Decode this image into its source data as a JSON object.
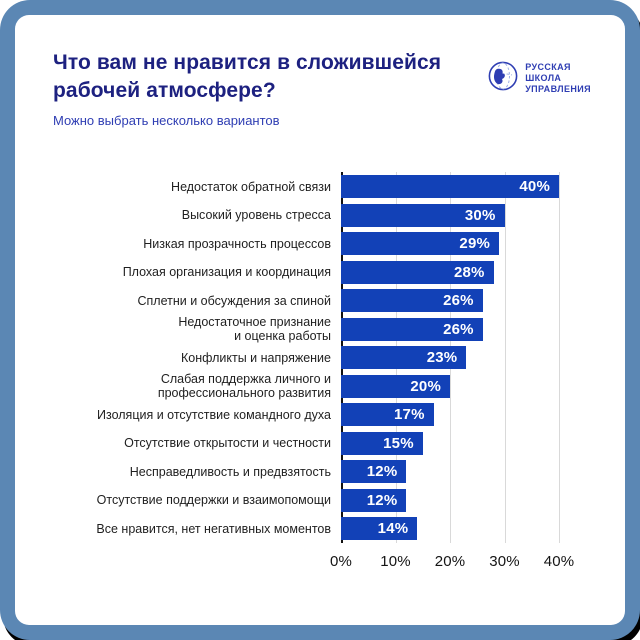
{
  "page": {
    "frame_color": "#5b87b4",
    "shadow_color": "#000000",
    "card_color": "#ffffff"
  },
  "header": {
    "title": "Что вам не нравится в сложившейся рабочей атмосфере?",
    "subtitle": "Можно выбрать несколько вариантов"
  },
  "logo": {
    "alt": "Русская школа управления",
    "lines": [
      "РУССКАЯ",
      "ШКОЛА",
      "УПРАВЛЕНИЯ"
    ],
    "color": "#2f3eb3"
  },
  "chart_data": {
    "type": "bar",
    "orientation": "horizontal",
    "title": "Что вам не нравится в сложившейся рабочей атмосфере?",
    "subtitle": "Можно выбрать несколько вариантов",
    "categories": [
      "Недостаток обратной связи",
      "Высокий уровень стресса",
      "Низкая прозрачность процессов",
      "Плохая организация и координация",
      "Сплетни и обсуждения за спиной",
      "Недостаточное признание\nи оценка работы",
      "Конфликты и напряжение",
      "Слабая поддержка личного и\nпрофессионального развития",
      "Изоляция и отсутствие командного духа",
      "Отсутствие открытости и честности",
      "Несправедливость и предвзятость",
      "Отсутствие поддержки и взаимопомощи",
      "Все нравится, нет негативных моментов"
    ],
    "values": [
      40,
      30,
      29,
      28,
      26,
      26,
      23,
      20,
      17,
      15,
      12,
      12,
      14
    ],
    "value_labels": [
      "40%",
      "30%",
      "29%",
      "28%",
      "26%",
      "26%",
      "23%",
      "20%",
      "17%",
      "15%",
      "12%",
      "12%",
      "14%"
    ],
    "xticks": [
      {
        "value": 0,
        "label": "0%"
      },
      {
        "value": 10,
        "label": "10%"
      },
      {
        "value": 20,
        "label": "20%"
      },
      {
        "value": 30,
        "label": "30%"
      },
      {
        "value": 40,
        "label": "40%"
      }
    ],
    "xlim": [
      0,
      40
    ],
    "grid": true,
    "legend": false,
    "colors": {
      "bar": "#1241b7",
      "value_label": "#ffffff",
      "category": "#1f1f1f",
      "grid_line": "#d9d9d9",
      "axis_line": "#111111",
      "title": "#1d2180",
      "subtitle": "#2f3eb3"
    }
  }
}
